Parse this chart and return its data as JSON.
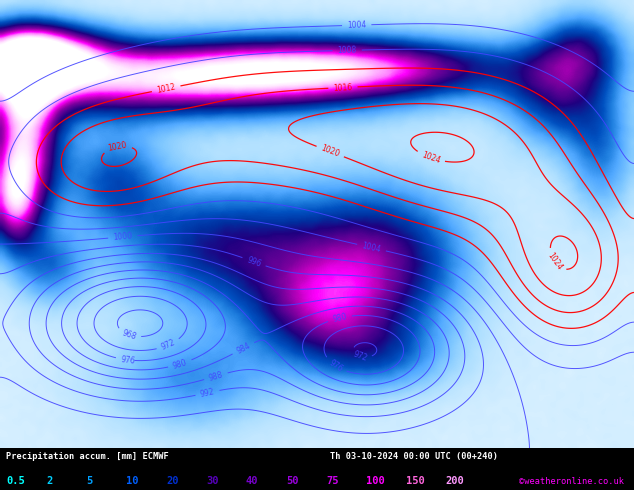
{
  "title_line1": "Precipitation accum. [mm] ECMWF",
  "title_line2": "Th 03-10-2024 00:00 UTC (00+240)",
  "colorbar_values": [
    "0.5",
    "2",
    "5",
    "10",
    "20",
    "30",
    "40",
    "50",
    "75",
    "100",
    "150",
    "200"
  ],
  "copyright": "©weatheronline.co.uk",
  "contour_color_high": "#ff0000",
  "contour_color_low": "#4444ff",
  "figsize": [
    6.34,
    4.9
  ],
  "dpi": 100,
  "label_colors": [
    "#00ffff",
    "#00d0ff",
    "#00a0ff",
    "#0060ff",
    "#0030d0",
    "#5500bb",
    "#7700cc",
    "#9900dd",
    "#cc00ee",
    "#ff00ff",
    "#ff66dd",
    "#ff99ff"
  ]
}
